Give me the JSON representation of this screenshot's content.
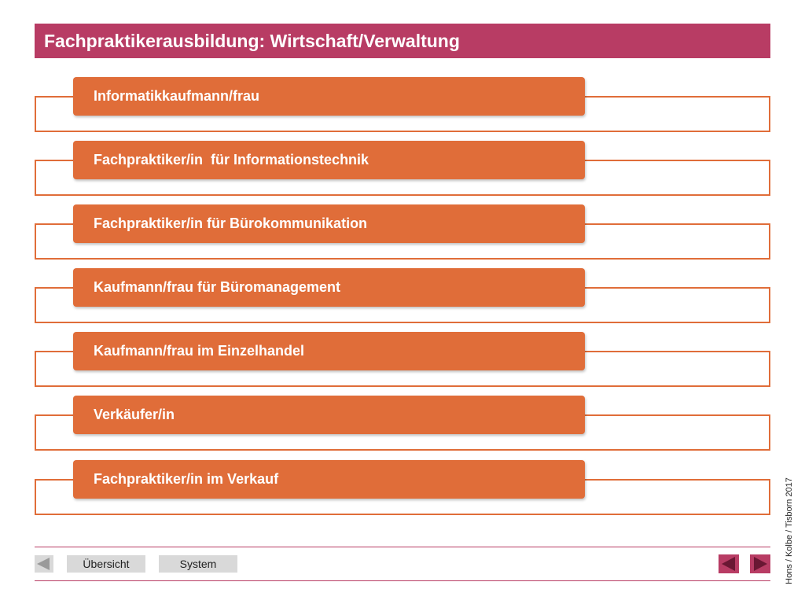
{
  "title": "Fachpraktikerausbildung: Wirtschaft/Verwaltung",
  "items": [
    "Informatikkaufmann/frau",
    "Fachpraktiker/in  für Informationstechnik",
    "Fachpraktiker/in für Bürokommunikation",
    "Kaufmann/frau für Büromanagement",
    "Kaufmann/frau im Einzelhandel",
    "Verkäufer/in",
    "Fachpraktiker/in im Verkauf"
  ],
  "credit": "Hons / Kolbe / Tisborn 2017",
  "nav": {
    "uebersicht_label": "Übersicht",
    "system_label": "System",
    "back_icon": "triangle-left-icon",
    "prev_icon": "triangle-left-icon",
    "next_icon": "triangle-right-icon"
  },
  "colors": {
    "accent": "#b83c64",
    "item": "#e06d39",
    "nav_gray": "#d9d9d9"
  }
}
